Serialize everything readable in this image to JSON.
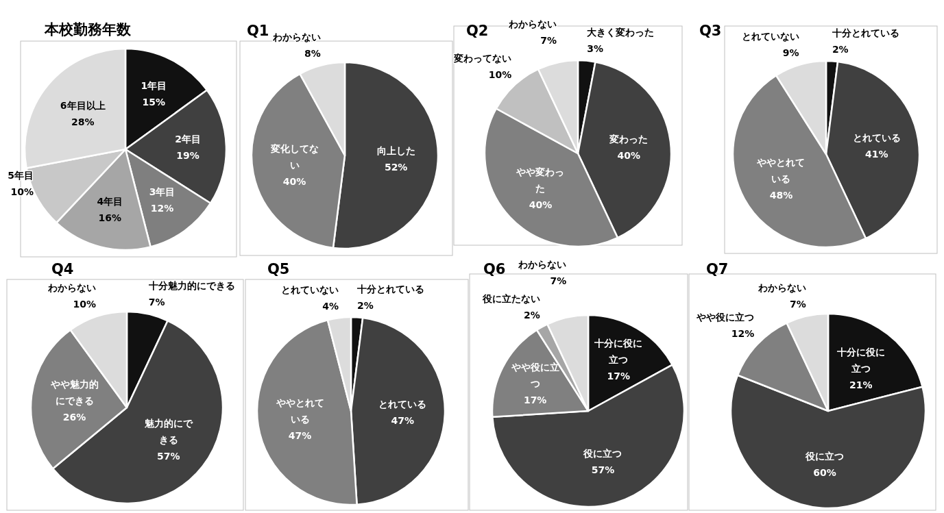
{
  "chart_data": [
    {
      "type": "pie",
      "title": "本校勤務年数",
      "categories": [
        "1年目",
        "2年目",
        "3年目",
        "4年目",
        "5年目",
        "6年目以上"
      ],
      "values": [
        15,
        19,
        12,
        16,
        10,
        28
      ],
      "value_labels": [
        "15%",
        "19%",
        "12%",
        "16%",
        "10%",
        "28%"
      ],
      "colors": [
        "#111111",
        "#404040",
        "#7f7f7f",
        "#a6a6a6",
        "#c8c8c8",
        "#dcdcdc"
      ]
    },
    {
      "type": "pie",
      "title": "Q1",
      "categories": [
        "向上した",
        "変化してない",
        "わからない"
      ],
      "values": [
        52,
        40,
        8
      ],
      "value_labels": [
        "52%",
        "40%",
        "8%"
      ],
      "colors": [
        "#404040",
        "#808080",
        "#dcdcdc"
      ]
    },
    {
      "type": "pie",
      "title": "Q2",
      "categories": [
        "大きく変わった",
        "変わった",
        "やや変わった",
        "変わってない",
        "わからない"
      ],
      "values": [
        3,
        40,
        40,
        10,
        7
      ],
      "value_labels": [
        "3%",
        "40%",
        "40%",
        "10%",
        "7%"
      ],
      "colors": [
        "#111111",
        "#404040",
        "#808080",
        "#c0c0c0",
        "#dcdcdc"
      ]
    },
    {
      "type": "pie",
      "title": "Q3",
      "categories": [
        "十分とれている",
        "とれている",
        "ややとれている",
        "とれていない"
      ],
      "values": [
        2,
        41,
        48,
        9
      ],
      "value_labels": [
        "2%",
        "41%",
        "48%",
        "9%"
      ],
      "colors": [
        "#111111",
        "#404040",
        "#808080",
        "#dcdcdc"
      ]
    },
    {
      "type": "pie",
      "title": "Q4",
      "categories": [
        "十分魅力的にできる",
        "魅力的にできる",
        "やや魅力的にできる",
        "わからない"
      ],
      "values": [
        7,
        57,
        26,
        10
      ],
      "value_labels": [
        "7%",
        "57%",
        "26%",
        "10%"
      ],
      "colors": [
        "#111111",
        "#404040",
        "#808080",
        "#dcdcdc"
      ]
    },
    {
      "type": "pie",
      "title": "Q5",
      "categories": [
        "十分とれている",
        "とれている",
        "ややとれている",
        "とれていない"
      ],
      "values": [
        2,
        47,
        47,
        4
      ],
      "value_labels": [
        "2%",
        "47%",
        "47%",
        "4%"
      ],
      "colors": [
        "#111111",
        "#404040",
        "#808080",
        "#dcdcdc"
      ]
    },
    {
      "type": "pie",
      "title": "Q6",
      "categories": [
        "十分に役に立つ",
        "役に立つ",
        "やや役に立つ",
        "役に立たない",
        "わからない"
      ],
      "values": [
        17,
        57,
        17,
        2,
        7
      ],
      "value_labels": [
        "17%",
        "57%",
        "17%",
        "2%",
        "7%"
      ],
      "colors": [
        "#111111",
        "#404040",
        "#808080",
        "#a6a6a6",
        "#dcdcdc"
      ]
    },
    {
      "type": "pie",
      "title": "Q7",
      "categories": [
        "十分に役に立つ",
        "役に立つ",
        "やや役に立つ",
        "わからない"
      ],
      "values": [
        21,
        60,
        12,
        7
      ],
      "value_labels": [
        "21%",
        "60%",
        "12%",
        "7%"
      ],
      "colors": [
        "#111111",
        "#404040",
        "#808080",
        "#dcdcdc"
      ]
    }
  ]
}
